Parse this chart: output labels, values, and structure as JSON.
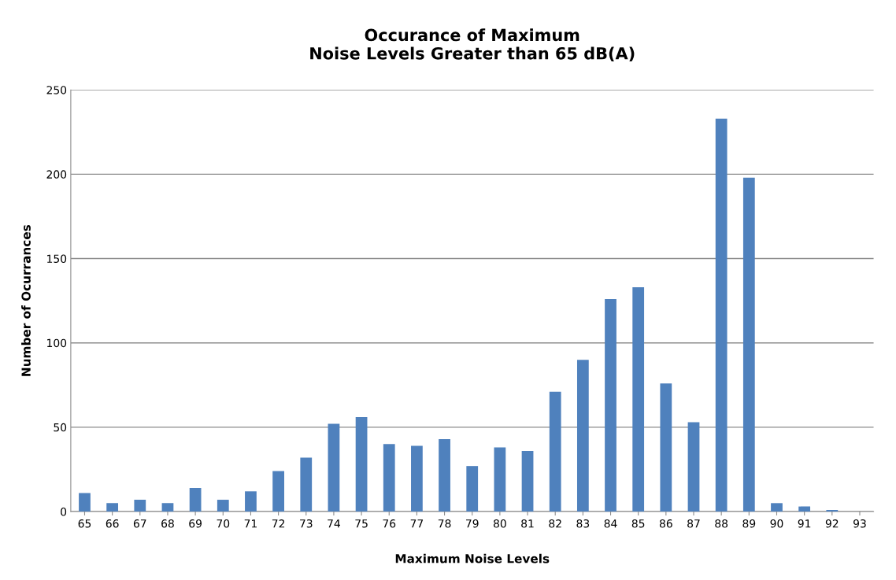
{
  "chart_data": {
    "type": "bar",
    "title": "Occurance of Maximum\nNoise Levels Greater than 65 dB(A)",
    "xlabel": "Maximum Noise Levels",
    "ylabel": "Number of Ocurrances",
    "categories": [
      "65",
      "66",
      "67",
      "68",
      "69",
      "70",
      "71",
      "72",
      "73",
      "74",
      "75",
      "76",
      "77",
      "78",
      "79",
      "80",
      "81",
      "82",
      "83",
      "84",
      "85",
      "86",
      "87",
      "88",
      "89",
      "90",
      "91",
      "92",
      "93"
    ],
    "values": [
      11,
      5,
      7,
      5,
      14,
      7,
      12,
      24,
      32,
      52,
      56,
      40,
      39,
      43,
      27,
      38,
      36,
      71,
      90,
      126,
      133,
      76,
      53,
      233,
      198,
      5,
      3,
      1,
      0
    ],
    "color": "#4f81bd",
    "ylim": [
      0,
      250
    ],
    "yticks": [
      0,
      50,
      100,
      150,
      200,
      250
    ],
    "grid": "y",
    "legend": false
  }
}
